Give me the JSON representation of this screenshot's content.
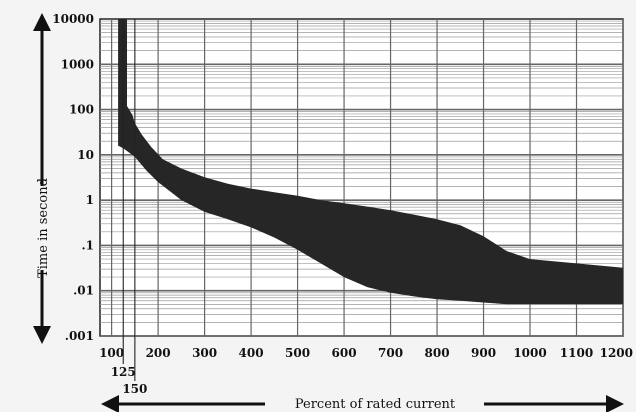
{
  "chart_data": {
    "type": "area",
    "title": "",
    "xlabel": "Percent of rated current",
    "ylabel": "Time in second",
    "xscale": "linear",
    "yscale": "log",
    "xlim": [
      75,
      1200
    ],
    "ylim": [
      0.001,
      10000
    ],
    "grid": true,
    "x_ticks": [
      100,
      200,
      300,
      400,
      500,
      600,
      700,
      800,
      900,
      1000,
      1100,
      1200
    ],
    "x_tick_labels": [
      "100",
      "200",
      "300",
      "400",
      "500",
      "600",
      "700",
      "800",
      "900",
      "1000",
      "1100",
      "1200"
    ],
    "x_markers": [
      125,
      150
    ],
    "x_marker_labels": [
      "125",
      "150"
    ],
    "y_ticks": [
      0.001,
      0.01,
      0.1,
      1,
      10,
      100,
      1000,
      10000
    ],
    "y_tick_labels": [
      ".001",
      ".01",
      ".1",
      "1",
      "10",
      "100",
      "1000",
      "10000"
    ],
    "band": {
      "upper": {
        "x": [
          133,
          133,
          145,
          150,
          165,
          185,
          210,
          250,
          300,
          350,
          400,
          450,
          500,
          550,
          600,
          650,
          700,
          750,
          800,
          850,
          900,
          950,
          1000,
          1100,
          1200
        ],
        "y": [
          10000,
          120,
          75,
          50,
          28,
          15,
          8,
          5,
          3.2,
          2.3,
          1.8,
          1.5,
          1.25,
          1.0,
          0.85,
          0.72,
          0.6,
          0.48,
          0.38,
          0.28,
          0.16,
          0.075,
          0.05,
          0.04,
          0.032
        ]
      },
      "lower": {
        "x": [
          114,
          114,
          125,
          150,
          175,
          200,
          250,
          300,
          350,
          400,
          450,
          500,
          550,
          600,
          650,
          700,
          750,
          800,
          850,
          900,
          950,
          1000,
          1100,
          1200
        ],
        "y": [
          10000,
          16,
          14,
          9,
          4.5,
          2.5,
          1.0,
          0.55,
          0.38,
          0.25,
          0.15,
          0.08,
          0.04,
          0.02,
          0.012,
          0.009,
          0.0075,
          0.0065,
          0.006,
          0.0055,
          0.005,
          0.005,
          0.005,
          0.005
        ]
      }
    },
    "colors": {
      "band": "#262626",
      "grid": "#9a9a9a",
      "major_grid": "#666666",
      "background": "#ffffff"
    }
  }
}
